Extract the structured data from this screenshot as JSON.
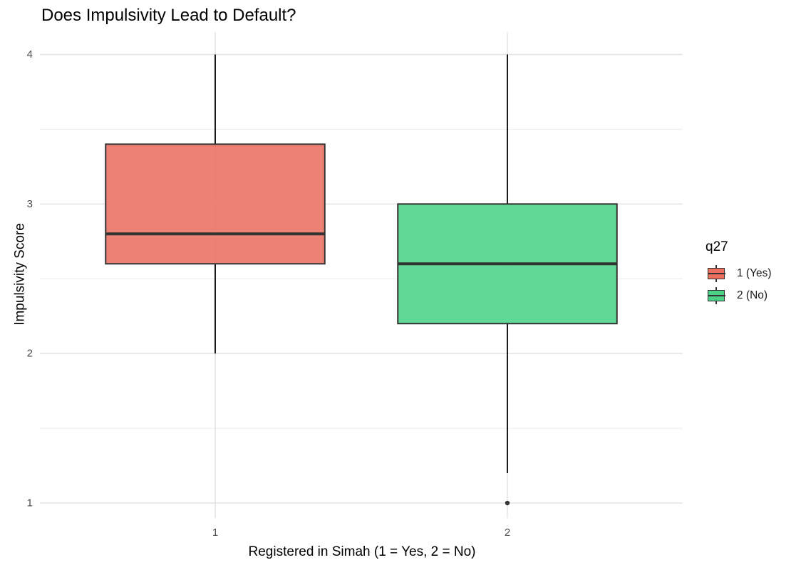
{
  "chart_data": {
    "type": "boxplot",
    "title": "Does Impulsivity Lead to Default?",
    "xlabel": "Registered in Simah (1 = Yes, 2 = No)",
    "ylabel": "Impulsivity Score",
    "categories": [
      "1",
      "2"
    ],
    "ylim": [
      0.9,
      4.15
    ],
    "yticks": [
      1,
      2,
      3,
      4
    ],
    "grid": true,
    "legend": {
      "title": "q27",
      "position": "right",
      "entries": [
        {
          "label": "1 (Yes)",
          "color": "#eb6e61"
        },
        {
          "label": "2 (No)",
          "color": "#4bd286"
        }
      ]
    },
    "series": [
      {
        "category": "1",
        "min": 2.0,
        "q1": 2.6,
        "median": 2.8,
        "q3": 3.4,
        "max": 4.0,
        "outliers": []
      },
      {
        "category": "2",
        "min": 1.2,
        "q1": 2.2,
        "median": 2.6,
        "q3": 3.0,
        "max": 4.0,
        "outliers": [
          1.0
        ]
      }
    ]
  }
}
